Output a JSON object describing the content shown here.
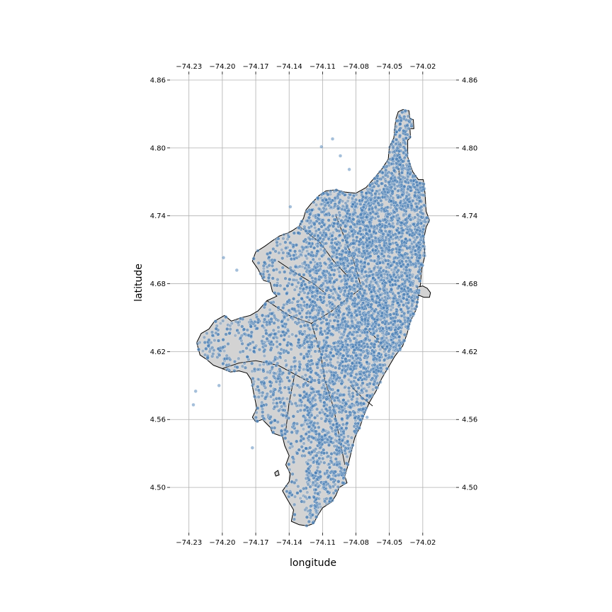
{
  "axes": {
    "xlabel": "longitude",
    "ylabel": "latitude",
    "xticks": [
      "−74.23",
      "−74.20",
      "−74.17",
      "−74.14",
      "−74.11",
      "−74.08",
      "−74.05",
      "−74.02"
    ],
    "yticks": [
      "4.86",
      "4.80",
      "4.74",
      "4.68",
      "4.62",
      "4.56",
      "4.50"
    ],
    "xtick_values": [
      -74.23,
      -74.2,
      -74.17,
      -74.14,
      -74.11,
      -74.08,
      -74.05,
      -74.02
    ],
    "ytick_values": [
      4.86,
      4.8,
      4.74,
      4.68,
      4.62,
      4.56,
      4.5
    ],
    "xlim": [
      -74.247,
      -73.99
    ],
    "ylim": [
      4.46,
      4.865
    ],
    "grid": true
  },
  "colors": {
    "points": "#4a7fb5",
    "land": "#d3d3d3",
    "boundary": "#000000",
    "grid": "#b0b0b0"
  },
  "map_data": {
    "type": "scatter-over-polygon",
    "boundary_lonlat": [
      [
        -74.0375,
        4.834
      ],
      [
        -74.0355,
        4.833
      ],
      [
        -74.0325,
        4.833
      ],
      [
        -74.0315,
        4.826
      ],
      [
        -74.0285,
        4.825
      ],
      [
        -74.028,
        4.817
      ],
      [
        -74.0315,
        4.817
      ],
      [
        -74.031,
        4.809
      ],
      [
        -74.0335,
        4.807
      ],
      [
        -74.0335,
        4.792
      ],
      [
        -74.029,
        4.779
      ],
      [
        -74.024,
        4.772
      ],
      [
        -74.0195,
        4.772
      ],
      [
        -74.018,
        4.76
      ],
      [
        -74.017,
        4.744
      ],
      [
        -74.014,
        4.736
      ],
      [
        -74.017,
        4.73
      ],
      [
        -74.019,
        4.72
      ],
      [
        -74.018,
        4.705
      ],
      [
        -74.021,
        4.693
      ],
      [
        -74.022,
        4.68
      ],
      [
        -74.024,
        4.668
      ],
      [
        -74.026,
        4.657
      ],
      [
        -74.031,
        4.647
      ],
      [
        -74.034,
        4.636
      ],
      [
        -74.038,
        4.625
      ],
      [
        -74.045,
        4.616
      ],
      [
        -74.051,
        4.606
      ],
      [
        -74.057,
        4.596
      ],
      [
        -74.062,
        4.585
      ],
      [
        -74.068,
        4.575
      ],
      [
        -74.073,
        4.563
      ],
      [
        -74.077,
        4.552
      ],
      [
        -74.081,
        4.544
      ],
      [
        -74.084,
        4.532
      ],
      [
        -74.087,
        4.52
      ],
      [
        -74.09,
        4.51
      ],
      [
        -74.088,
        4.504
      ],
      [
        -74.095,
        4.5
      ],
      [
        -74.098,
        4.493
      ],
      [
        -74.102,
        4.487
      ],
      [
        -74.11,
        4.482
      ],
      [
        -74.115,
        4.474
      ],
      [
        -74.118,
        4.468
      ],
      [
        -74.124,
        4.466
      ],
      [
        -74.131,
        4.467
      ],
      [
        -74.138,
        4.47
      ],
      [
        -74.136,
        4.48
      ],
      [
        -74.142,
        4.49
      ],
      [
        -74.146,
        4.497
      ],
      [
        -74.14,
        4.505
      ],
      [
        -74.139,
        4.512
      ],
      [
        -74.143,
        4.52
      ],
      [
        -74.14,
        4.528
      ],
      [
        -74.144,
        4.537
      ],
      [
        -74.146,
        4.545
      ],
      [
        -74.155,
        4.548
      ],
      [
        -74.157,
        4.553
      ],
      [
        -74.161,
        4.557
      ],
      [
        -74.164,
        4.56
      ],
      [
        -74.17,
        4.558
      ],
      [
        -74.173,
        4.562
      ],
      [
        -74.169,
        4.57
      ],
      [
        -74.172,
        4.584
      ],
      [
        -74.174,
        4.595
      ],
      [
        -74.178,
        4.601
      ],
      [
        -74.185,
        4.603
      ],
      [
        -74.193,
        4.602
      ],
      [
        -74.2,
        4.605
      ],
      [
        -74.208,
        4.608
      ],
      [
        -74.214,
        4.613
      ],
      [
        -74.22,
        4.617
      ],
      [
        -74.223,
        4.628
      ],
      [
        -74.219,
        4.636
      ],
      [
        -74.212,
        4.64
      ],
      [
        -74.207,
        4.647
      ],
      [
        -74.198,
        4.652
      ],
      [
        -74.192,
        4.647
      ],
      [
        -74.183,
        4.65
      ],
      [
        -74.175,
        4.652
      ],
      [
        -74.168,
        4.656
      ],
      [
        -74.16,
        4.665
      ],
      [
        -74.151,
        4.669
      ],
      [
        -74.155,
        4.673
      ],
      [
        -74.157,
        4.681
      ],
      [
        -74.163,
        4.683
      ],
      [
        -74.168,
        4.693
      ],
      [
        -74.173,
        4.7
      ],
      [
        -74.17,
        4.708
      ],
      [
        -74.162,
        4.713
      ],
      [
        -74.155,
        4.718
      ],
      [
        -74.149,
        4.722
      ],
      [
        -74.141,
        4.725
      ],
      [
        -74.137,
        4.727
      ],
      [
        -74.131,
        4.731
      ],
      [
        -74.127,
        4.738
      ],
      [
        -74.125,
        4.745
      ],
      [
        -74.12,
        4.751
      ],
      [
        -74.113,
        4.758
      ],
      [
        -74.107,
        4.762
      ],
      [
        -74.098,
        4.763
      ],
      [
        -74.09,
        4.761
      ],
      [
        -74.08,
        4.76
      ],
      [
        -74.071,
        4.765
      ],
      [
        -74.064,
        4.773
      ],
      [
        -74.057,
        4.781
      ],
      [
        -74.051,
        4.79
      ],
      [
        -74.05,
        4.801
      ],
      [
        -74.046,
        4.809
      ],
      [
        -74.045,
        4.819
      ],
      [
        -74.044,
        4.826
      ],
      [
        -74.042,
        4.832
      ],
      [
        -74.0375,
        4.834
      ]
    ],
    "enclave_lonlat": [
      [
        -74.025,
        4.677
      ],
      [
        -74.02,
        4.678
      ],
      [
        -74.016,
        4.676
      ],
      [
        -74.013,
        4.672
      ],
      [
        -74.014,
        4.668
      ],
      [
        -74.019,
        4.668
      ],
      [
        -74.024,
        4.67
      ],
      [
        -74.025,
        4.677
      ]
    ],
    "islet_lonlat": [
      [
        -74.153,
        4.513
      ],
      [
        -74.15,
        4.515
      ],
      [
        -74.149,
        4.511
      ],
      [
        -74.152,
        4.51
      ],
      [
        -74.153,
        4.513
      ]
    ],
    "inner_boundaries_lonlat": [
      [
        [
          -74.16,
          4.665
        ],
        [
          -74.14,
          4.652
        ],
        [
          -74.12,
          4.645
        ]
      ],
      [
        [
          -74.12,
          4.645
        ],
        [
          -74.103,
          4.655
        ],
        [
          -74.09,
          4.665
        ],
        [
          -74.075,
          4.676
        ]
      ],
      [
        [
          -74.12,
          4.645
        ],
        [
          -74.112,
          4.62
        ],
        [
          -74.108,
          4.595
        ],
        [
          -74.1,
          4.57
        ],
        [
          -74.095,
          4.545
        ],
        [
          -74.09,
          4.52
        ]
      ],
      [
        [
          -74.075,
          4.676
        ],
        [
          -74.082,
          4.7
        ],
        [
          -74.09,
          4.72
        ],
        [
          -74.098,
          4.74
        ]
      ],
      [
        [
          -74.131,
          4.731
        ],
        [
          -74.112,
          4.716
        ],
        [
          -74.1,
          4.7
        ],
        [
          -74.085,
          4.684
        ]
      ],
      [
        [
          -74.15,
          4.7
        ],
        [
          -74.135,
          4.69
        ],
        [
          -74.118,
          4.68
        ],
        [
          -74.108,
          4.672
        ]
      ],
      [
        [
          -74.2,
          4.605
        ],
        [
          -74.185,
          4.61
        ],
        [
          -74.17,
          4.612
        ],
        [
          -74.15,
          4.608
        ],
        [
          -74.135,
          4.6
        ],
        [
          -74.12,
          4.592
        ]
      ],
      [
        [
          -74.135,
          4.6
        ],
        [
          -74.14,
          4.575
        ],
        [
          -74.143,
          4.55
        ]
      ],
      [
        [
          -74.07,
          4.64
        ],
        [
          -74.062,
          4.632
        ],
        [
          -74.055,
          4.622
        ]
      ],
      [
        [
          -74.085,
          4.59
        ],
        [
          -74.075,
          4.58
        ],
        [
          -74.065,
          4.572
        ]
      ],
      [
        [
          -74.04,
          4.77
        ],
        [
          -74.043,
          4.79
        ],
        [
          -74.04,
          4.805
        ]
      ]
    ],
    "point_count": 5000,
    "random_seed": 7
  }
}
